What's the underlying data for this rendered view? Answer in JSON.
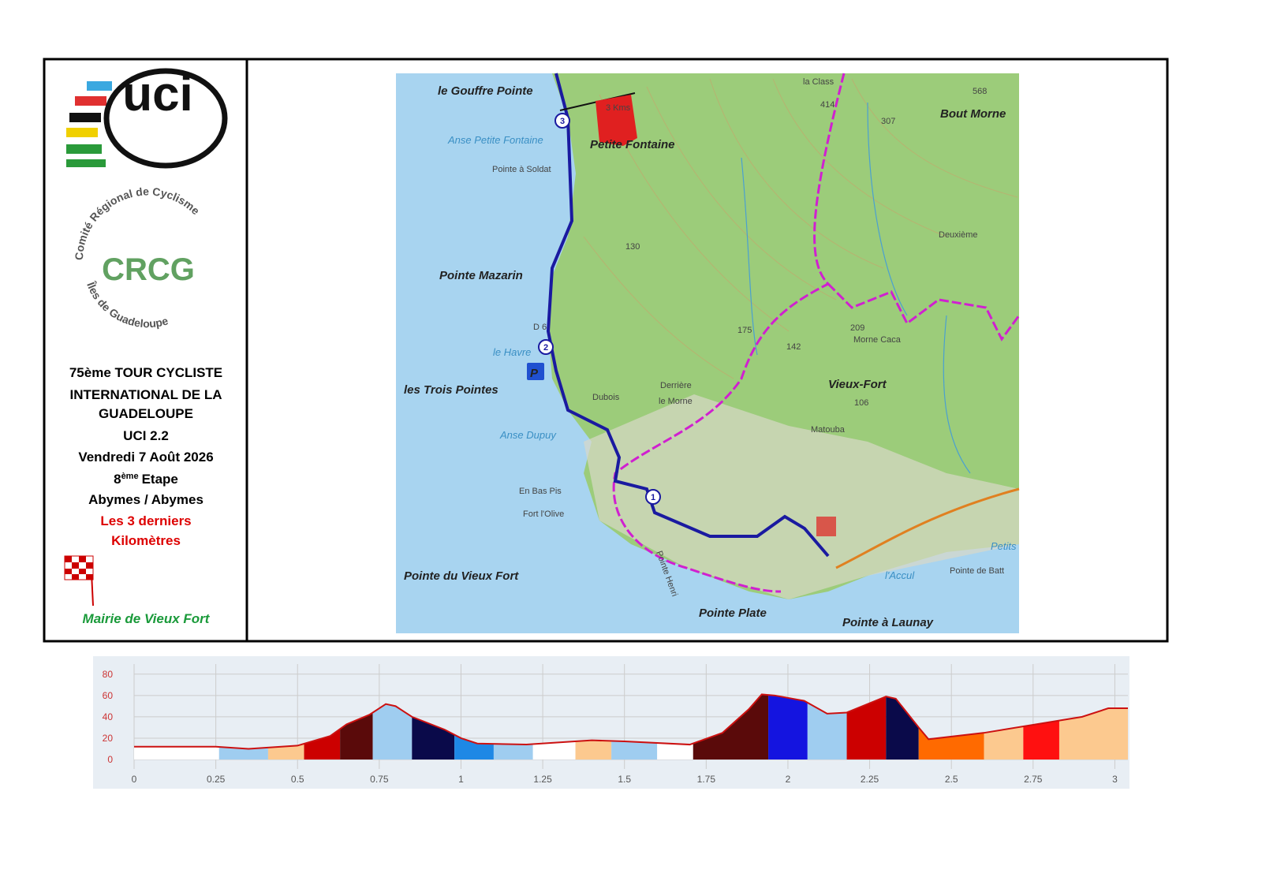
{
  "panel": {
    "logo": "uci",
    "crcg_top": "Comité Régional de Cyclisme",
    "crcg_bottom": "Îles de Guadeloupe",
    "crcg_letters": "CRCG",
    "lines": [
      "75ème TOUR CYCLISTE",
      "INTERNATIONAL DE LA",
      "GUADELOUPE",
      "UCI 2.2",
      "Vendredi 7 Août 2026"
    ],
    "stage": {
      "number": "8",
      "suffix": "ème",
      "label": "Etape"
    },
    "route": "Abymes / Abymes",
    "highlight": [
      "Les 3 derniers",
      "Kilomètres"
    ],
    "sponsor": "Mairie de Vieux Fort"
  },
  "map": {
    "labels": [
      "le Gouffre Pointe",
      "la Class",
      "568",
      "414",
      "307",
      "Bout Morne",
      "Anse Petite Fontaine",
      "Petite Fontaine",
      "3 Kms",
      "Pointe à Soldat",
      "Pointe Mazarin",
      "130",
      "Deuxième",
      "le Havre",
      "D 6",
      "les Trois Pointes",
      "Dubois",
      "Derrière",
      "le Morne",
      "175",
      "142",
      "209",
      "Morne Caca",
      "Vieux-Fort",
      "Anse Dupuy",
      "Matouba",
      "106",
      "En Bas Pis",
      "Fort l'Olive",
      "Pointe du Vieux Fort",
      "Pointe Henri",
      "Pointe Plate",
      "Pointe à Launay",
      "l'Accul",
      "Pointe de Batt",
      "Petits",
      "P"
    ],
    "markers": [
      "3",
      "2",
      "1"
    ]
  },
  "profile": {
    "type": "area",
    "xlim": [
      0,
      3.04
    ],
    "ylim": [
      0,
      85
    ],
    "xticks": [
      0,
      0.25,
      0.5,
      0.75,
      1,
      1.25,
      1.5,
      1.75,
      2,
      2.25,
      2.5,
      2.75,
      3
    ],
    "yticks": [
      0,
      20,
      40,
      60,
      80
    ],
    "grid": true,
    "line_color": "#cc1111",
    "distance": [
      0,
      0.25,
      0.35,
      0.5,
      0.6,
      0.65,
      0.72,
      0.77,
      0.8,
      0.85,
      0.95,
      1,
      1.05,
      1.2,
      1.4,
      1.5,
      1.7,
      1.8,
      1.88,
      1.92,
      1.96,
      2.05,
      2.12,
      2.18,
      2.3,
      2.33,
      2.4,
      2.43,
      2.6,
      2.8,
      2.9,
      2.98,
      3.04
    ],
    "elevation": [
      12,
      12,
      10,
      13,
      22,
      33,
      42,
      52,
      50,
      40,
      28,
      20,
      15,
      14,
      18,
      17,
      14,
      25,
      47,
      61,
      60,
      55,
      43,
      44,
      59,
      57,
      30,
      19,
      25,
      35,
      40,
      48,
      48
    ],
    "segments": [
      {
        "from": 0,
        "to": 0.26,
        "color": "#ffffff"
      },
      {
        "from": 0.26,
        "to": 0.41,
        "color": "#9fcdf0"
      },
      {
        "from": 0.41,
        "to": 0.52,
        "color": "#fcc98f"
      },
      {
        "from": 0.52,
        "to": 0.63,
        "color": "#cc0000"
      },
      {
        "from": 0.63,
        "to": 0.73,
        "color": "#5a0a0a"
      },
      {
        "from": 0.73,
        "to": 0.85,
        "color": "#9fcdf0"
      },
      {
        "from": 0.85,
        "to": 0.98,
        "color": "#0a0a4a"
      },
      {
        "from": 0.98,
        "to": 1.1,
        "color": "#1e88e5"
      },
      {
        "from": 1.1,
        "to": 1.22,
        "color": "#9fcdf0"
      },
      {
        "from": 1.22,
        "to": 1.35,
        "color": "#ffffff"
      },
      {
        "from": 1.35,
        "to": 1.46,
        "color": "#fcc98f"
      },
      {
        "from": 1.46,
        "to": 1.6,
        "color": "#9fcdf0"
      },
      {
        "from": 1.6,
        "to": 1.71,
        "color": "#ffffff"
      },
      {
        "from": 1.71,
        "to": 1.94,
        "color": "#5a0a0a"
      },
      {
        "from": 1.94,
        "to": 2.06,
        "color": "#1414e0"
      },
      {
        "from": 2.06,
        "to": 2.18,
        "color": "#9fcdf0"
      },
      {
        "from": 2.18,
        "to": 2.3,
        "color": "#cc0000"
      },
      {
        "from": 2.3,
        "to": 2.4,
        "color": "#0a0a4a"
      },
      {
        "from": 2.4,
        "to": 2.6,
        "color": "#ff6a00"
      },
      {
        "from": 2.6,
        "to": 2.72,
        "color": "#fcc98f"
      },
      {
        "from": 2.72,
        "to": 2.83,
        "color": "#ff1010"
      },
      {
        "from": 2.83,
        "to": 3.04,
        "color": "#fcc98f"
      }
    ]
  }
}
